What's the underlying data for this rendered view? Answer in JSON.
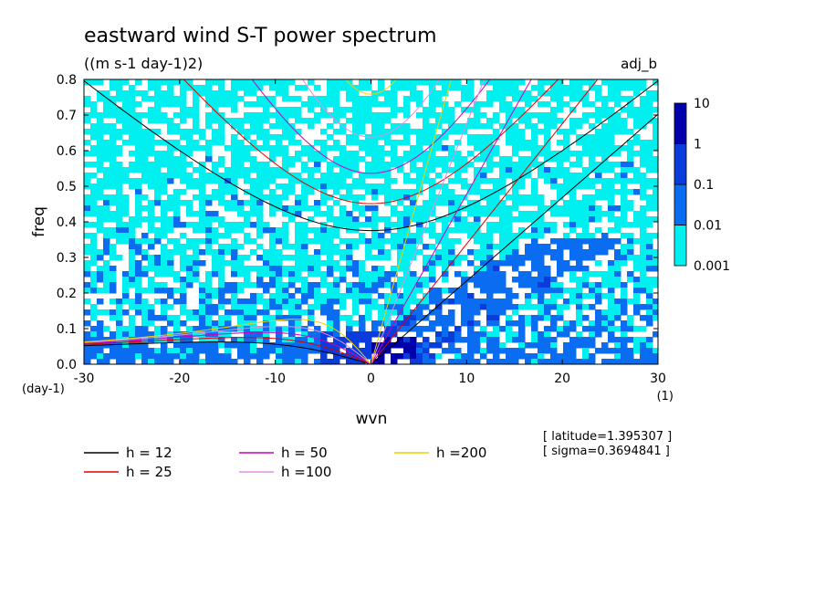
{
  "chart_data": {
    "type": "heatmap",
    "title": "eastward wind S-T power spectrum",
    "subtitle": "((m s-1 day-1)2)",
    "tag": "adj_b",
    "xlabel": "wvn",
    "ylabel": "freq",
    "x_unit": "(1)",
    "y_unit": "(day-1)",
    "xlim": [
      -30,
      30
    ],
    "ylim": [
      0,
      0.8
    ],
    "x_ticks": [
      -30,
      -20,
      -10,
      0,
      10,
      20,
      30
    ],
    "y_ticks": [
      0.0,
      0.1,
      0.2,
      0.3,
      0.4,
      0.5,
      0.6,
      0.7,
      0.8
    ],
    "x_tick_labels": [
      "-30",
      "-20",
      "-10",
      "0",
      "10",
      "20",
      "30"
    ],
    "y_tick_labels": [
      "0.0",
      "0.1",
      "0.2",
      "0.3",
      "0.4",
      "0.5",
      "0.6",
      "0.7",
      "0.8"
    ],
    "colorbar": {
      "levels": [
        "0.001",
        "0.01",
        "0.1",
        "1",
        "10"
      ],
      "colors": [
        "#00f0f0",
        "#0a6cf0",
        "#0a3cdc",
        "#0000aa",
        "#3b0aa0"
      ]
    },
    "dispersion_curves": [
      {
        "name": "h = 12",
        "h": 12,
        "color": "#000000"
      },
      {
        "name": "h = 25",
        "h": 25,
        "color": "#e00000"
      },
      {
        "name": "h = 50",
        "h": 50,
        "color": "#d000c0"
      },
      {
        "name": "h =100",
        "h": 100,
        "color": "#e090e0"
      },
      {
        "name": "h =200",
        "h": 200,
        "color": "#f0d000"
      }
    ],
    "info": {
      "latitude": "[ latitude=1.395307 ]",
      "sigma": "[ sigma=0.3694841 ]"
    }
  }
}
